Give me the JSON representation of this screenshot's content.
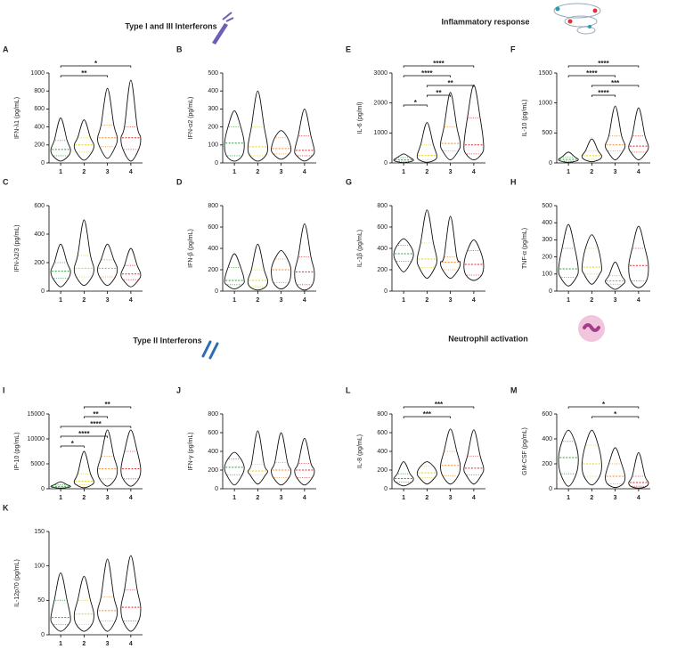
{
  "sections": [
    "Type I and III Interferons",
    "Inflammatory response",
    "Type II Interferons",
    "Neutrophil activation"
  ],
  "group_colors": [
    "#2e9e3a",
    "#e3cf1a",
    "#ef8a24",
    "#e0262a"
  ],
  "chart_data": [
    {
      "type": "violin",
      "label": "A",
      "ylabel": "IFN-λ1 (pg/mL)",
      "categories": [
        "1",
        "2",
        "3",
        "4"
      ],
      "ylim": [
        0,
        1000
      ],
      "yticks": [
        0,
        200,
        400,
        600,
        800,
        1000
      ],
      "min": [
        20,
        30,
        50,
        20
      ],
      "q1": [
        80,
        120,
        180,
        150
      ],
      "median": [
        150,
        200,
        280,
        280
      ],
      "q3": [
        250,
        280,
        420,
        400
      ],
      "max": [
        500,
        480,
        830,
        920
      ],
      "comparisons": [
        {
          "groups": [
            1,
            3
          ],
          "label": "**"
        },
        {
          "groups": [
            1,
            4
          ],
          "label": "*"
        }
      ]
    },
    {
      "type": "violin",
      "label": "B",
      "ylabel": "IFN-α2 (pg/mL)",
      "categories": [
        "1",
        "2",
        "3",
        "4"
      ],
      "ylim": [
        0,
        500
      ],
      "yticks": [
        0,
        100,
        200,
        300,
        400,
        500
      ],
      "min": [
        10,
        10,
        20,
        10
      ],
      "q1": [
        40,
        40,
        50,
        40
      ],
      "median": [
        110,
        90,
        80,
        70
      ],
      "q3": [
        200,
        200,
        140,
        150
      ],
      "max": [
        290,
        400,
        180,
        300
      ],
      "comparisons": []
    },
    {
      "type": "violin",
      "label": "E",
      "ylabel": "IL-6 (pg/ml)",
      "categories": [
        "1",
        "2",
        "3",
        "4"
      ],
      "ylim": [
        0,
        3000
      ],
      "yticks": [
        0,
        1000,
        2000,
        3000
      ],
      "min": [
        10,
        20,
        100,
        100
      ],
      "q1": [
        50,
        100,
        400,
        300
      ],
      "median": [
        100,
        250,
        650,
        600
      ],
      "q3": [
        180,
        600,
        1200,
        1500
      ],
      "max": [
        300,
        1350,
        2350,
        2600
      ],
      "comparisons": [
        {
          "groups": [
            1,
            2
          ],
          "label": "*"
        },
        {
          "groups": [
            2,
            3
          ],
          "label": "**"
        },
        {
          "groups": [
            2,
            4
          ],
          "label": "**"
        },
        {
          "groups": [
            1,
            3
          ],
          "label": "****"
        },
        {
          "groups": [
            1,
            4
          ],
          "label": "****"
        }
      ]
    },
    {
      "type": "violin",
      "label": "F",
      "ylabel": "IL-10 (pg/mL)",
      "categories": [
        "1",
        "2",
        "3",
        "4"
      ],
      "ylim": [
        0,
        1500
      ],
      "yticks": [
        0,
        500,
        1000,
        1500
      ],
      "min": [
        10,
        20,
        50,
        50
      ],
      "q1": [
        30,
        60,
        200,
        180
      ],
      "median": [
        60,
        120,
        300,
        280
      ],
      "q3": [
        100,
        200,
        450,
        450
      ],
      "max": [
        180,
        400,
        950,
        920
      ],
      "comparisons": [
        {
          "groups": [
            2,
            3
          ],
          "label": "****"
        },
        {
          "groups": [
            2,
            4
          ],
          "label": "***"
        },
        {
          "groups": [
            1,
            3
          ],
          "label": "****"
        },
        {
          "groups": [
            1,
            4
          ],
          "label": "****"
        }
      ]
    },
    {
      "type": "violin",
      "label": "C",
      "ylabel": "IFN-λ2/3 (pg/mL)",
      "categories": [
        "1",
        "2",
        "3",
        "4"
      ],
      "ylim": [
        0,
        600
      ],
      "yticks": [
        0,
        200,
        400,
        600
      ],
      "min": [
        30,
        40,
        40,
        30
      ],
      "q1": [
        90,
        100,
        100,
        80
      ],
      "median": [
        140,
        160,
        160,
        120
      ],
      "q3": [
        200,
        250,
        220,
        180
      ],
      "max": [
        330,
        500,
        330,
        300
      ],
      "comparisons": []
    },
    {
      "type": "violin",
      "label": "D",
      "ylabel": "IFN-β (pg/mL)",
      "categories": [
        "1",
        "2",
        "3",
        "4"
      ],
      "ylim": [
        0,
        800
      ],
      "yticks": [
        0,
        200,
        400,
        600,
        800
      ],
      "min": [
        20,
        10,
        20,
        10
      ],
      "q1": [
        60,
        40,
        80,
        60
      ],
      "median": [
        100,
        100,
        200,
        180
      ],
      "q3": [
        220,
        200,
        300,
        320
      ],
      "max": [
        350,
        440,
        380,
        630
      ],
      "comparisons": []
    },
    {
      "type": "violin",
      "label": "G",
      "ylabel": "IL-1β (pg/mL)",
      "categories": [
        "1",
        "2",
        "3",
        "4"
      ],
      "ylim": [
        0,
        800
      ],
      "yticks": [
        0,
        200,
        400,
        600,
        800
      ],
      "min": [
        180,
        120,
        120,
        100
      ],
      "q1": [
        280,
        220,
        200,
        150
      ],
      "median": [
        350,
        300,
        270,
        250
      ],
      "q3": [
        430,
        450,
        320,
        380
      ],
      "max": [
        490,
        760,
        700,
        480
      ],
      "comparisons": []
    },
    {
      "type": "violin",
      "label": "H",
      "ylabel": "TNF-α (pg/mL)",
      "categories": [
        "1",
        "2",
        "3",
        "4"
      ],
      "ylim": [
        0,
        500
      ],
      "yticks": [
        0,
        100,
        200,
        300,
        400,
        500
      ],
      "min": [
        30,
        40,
        10,
        20
      ],
      "q1": [
        80,
        100,
        40,
        60
      ],
      "median": [
        130,
        140,
        60,
        150
      ],
      "q3": [
        250,
        250,
        90,
        250
      ],
      "max": [
        390,
        330,
        170,
        380
      ],
      "comparisons": []
    },
    {
      "type": "violin",
      "label": "I",
      "ylabel": "IP-10 (pg/mL)",
      "categories": [
        "1",
        "2",
        "3",
        "4"
      ],
      "ylim": [
        0,
        15000
      ],
      "yticks": [
        0,
        5000,
        10000,
        15000
      ],
      "min": [
        100,
        200,
        500,
        500
      ],
      "q1": [
        300,
        800,
        2000,
        2000
      ],
      "median": [
        500,
        1500,
        4000,
        4000
      ],
      "q3": [
        800,
        3000,
        6500,
        7500
      ],
      "max": [
        1400,
        7500,
        11800,
        11800
      ],
      "comparisons": [
        {
          "groups": [
            1,
            2
          ],
          "label": "*"
        },
        {
          "groups": [
            1,
            3
          ],
          "label": "****"
        },
        {
          "groups": [
            1,
            4
          ],
          "label": "****"
        },
        {
          "groups": [
            2,
            3
          ],
          "label": "**"
        },
        {
          "groups": [
            2,
            4
          ],
          "label": "**"
        }
      ]
    },
    {
      "type": "violin",
      "label": "J",
      "ylabel": "IFN-γ (pg/mL)",
      "categories": [
        "1",
        "2",
        "3",
        "4"
      ],
      "ylim": [
        0,
        800
      ],
      "yticks": [
        0,
        200,
        400,
        600,
        800
      ],
      "min": [
        40,
        50,
        40,
        40
      ],
      "q1": [
        150,
        150,
        120,
        120
      ],
      "median": [
        230,
        190,
        200,
        200
      ],
      "q3": [
        320,
        260,
        280,
        270
      ],
      "max": [
        390,
        620,
        600,
        540
      ],
      "comparisons": []
    },
    {
      "type": "violin",
      "label": "L",
      "ylabel": "IL-8 (pg/mL)",
      "categories": [
        "1",
        "2",
        "3",
        "4"
      ],
      "ylim": [
        0,
        800
      ],
      "yticks": [
        0,
        200,
        400,
        600,
        800
      ],
      "min": [
        30,
        50,
        50,
        50
      ],
      "q1": [
        70,
        120,
        140,
        150
      ],
      "median": [
        110,
        170,
        250,
        220
      ],
      "q3": [
        160,
        240,
        400,
        350
      ],
      "max": [
        290,
        290,
        640,
        630
      ],
      "comparisons": [
        {
          "groups": [
            1,
            3
          ],
          "label": "***"
        },
        {
          "groups": [
            1,
            4
          ],
          "label": "***"
        }
      ]
    },
    {
      "type": "violin",
      "label": "M",
      "ylabel": "GM-CSF (pg/mL)",
      "categories": [
        "1",
        "2",
        "3",
        "4"
      ],
      "ylim": [
        0,
        600
      ],
      "yticks": [
        0,
        200,
        400,
        600
      ],
      "min": [
        20,
        30,
        10,
        5
      ],
      "q1": [
        120,
        100,
        40,
        20
      ],
      "median": [
        250,
        200,
        100,
        50
      ],
      "q3": [
        380,
        350,
        200,
        100
      ],
      "max": [
        470,
        470,
        330,
        290
      ],
      "comparisons": [
        {
          "groups": [
            2,
            4
          ],
          "label": "*"
        },
        {
          "groups": [
            1,
            4
          ],
          "label": "*"
        }
      ]
    },
    {
      "type": "violin",
      "label": "K",
      "ylabel": "IL-12p70 (pg/mL)",
      "categories": [
        "1",
        "2",
        "3",
        "4"
      ],
      "ylim": [
        0,
        150
      ],
      "yticks": [
        0,
        50,
        100,
        150
      ],
      "min": [
        5,
        5,
        5,
        5
      ],
      "q1": [
        15,
        15,
        20,
        20
      ],
      "median": [
        25,
        30,
        35,
        40
      ],
      "q3": [
        50,
        50,
        55,
        65
      ],
      "max": [
        90,
        85,
        110,
        115
      ],
      "comparisons": []
    }
  ]
}
